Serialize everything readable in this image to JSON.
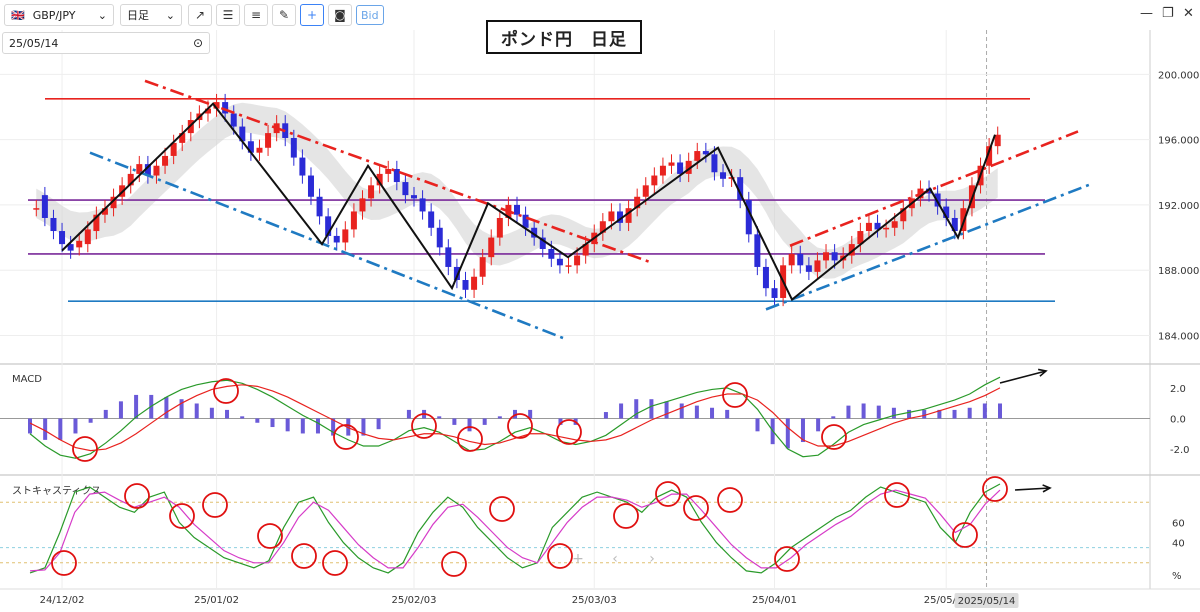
{
  "toolbar": {
    "symbol": "GBP/JPY",
    "timeframe": "日足",
    "bid_label": "Bid"
  },
  "date_selector": {
    "value": "25/05/14"
  },
  "title": "ポンド円　日足",
  "colors": {
    "bull": "#e8231f",
    "bear": "#2b2bd6",
    "resistance": "#e8231f",
    "support": "#1f7ac2",
    "trend_down": "#e8231f",
    "trend_blue": "#1f7ac2",
    "purple_level": "#7a2a9a",
    "macd_line": "#2a9a2a",
    "signal_line": "#e8231f",
    "histogram": "#6a5ad8",
    "stoch_k": "#2a9a2a",
    "stoch_d": "#d63cc8",
    "circle": "#e01010"
  },
  "chart_data": [
    {
      "type": "candlestick",
      "symbol": "GBP/JPY",
      "timeframe": "daily",
      "y_ticks": [
        "200.000",
        "196.000",
        "192.000",
        "188.000",
        "184.000"
      ],
      "ylim": [
        182.5,
        201
      ],
      "x_ticks": [
        "24/12/02",
        "25/01/02",
        "25/02/03",
        "25/03/03",
        "25/04/01",
        "25/05/01"
      ],
      "current_date_label": "2025/05/14",
      "levels": [
        {
          "name": "resistance",
          "value": 198.5
        },
        {
          "name": "support",
          "value": 186.1
        },
        {
          "name": "upper-range",
          "value": 192.3
        },
        {
          "name": "lower-range",
          "value": 189.0
        }
      ],
      "closes": [
        191.8,
        191.2,
        190.4,
        189.6,
        189.2,
        189.8,
        190.5,
        191.4,
        191.8,
        192.5,
        193.2,
        193.9,
        194.5,
        193.8,
        194.4,
        195.0,
        195.8,
        196.4,
        197.2,
        197.6,
        197.9,
        198.3,
        197.6,
        196.8,
        195.9,
        195.2,
        195.5,
        196.4,
        197.0,
        196.1,
        194.9,
        193.8,
        192.5,
        191.3,
        190.1,
        189.7,
        190.5,
        191.6,
        192.4,
        193.2,
        193.9,
        194.2,
        193.4,
        192.6,
        192.4,
        191.6,
        190.6,
        189.4,
        188.2,
        187.4,
        186.8,
        187.6,
        188.8,
        190.0,
        191.2,
        192.0,
        191.4,
        190.6,
        190.0,
        189.3,
        188.7,
        188.3,
        188.3,
        188.9,
        189.6,
        190.3,
        191.0,
        191.6,
        190.9,
        191.8,
        192.5,
        193.2,
        193.8,
        194.4,
        194.6,
        193.9,
        194.7,
        195.3,
        195.1,
        194.0,
        193.6,
        193.7,
        192.3,
        190.2,
        188.2,
        186.9,
        186.3,
        188.3,
        189.0,
        188.3,
        187.9,
        188.6,
        189.1,
        188.6,
        188.9,
        189.6,
        190.4,
        190.9,
        190.5,
        190.6,
        191.0,
        191.8,
        192.4,
        193.0,
        192.7,
        191.9,
        191.2,
        190.4,
        191.8,
        193.2,
        194.4,
        195.6,
        196.3
      ],
      "opens": [
        191.8,
        192.6,
        191.2,
        190.4,
        189.6,
        189.4,
        189.6,
        190.4,
        191.4,
        191.8,
        192.5,
        193.2,
        193.9,
        194.5,
        193.8,
        194.4,
        195.0,
        195.8,
        196.4,
        197.2,
        197.6,
        197.9,
        198.3,
        197.6,
        196.8,
        195.9,
        195.2,
        195.5,
        196.4,
        197.0,
        196.1,
        194.9,
        193.8,
        192.5,
        191.3,
        190.1,
        189.7,
        190.5,
        191.6,
        192.4,
        193.2,
        193.9,
        194.2,
        193.4,
        192.6,
        192.4,
        191.6,
        190.6,
        189.4,
        188.2,
        187.4,
        186.8,
        187.6,
        188.8,
        190.0,
        191.2,
        192.0,
        191.4,
        190.6,
        190.0,
        189.3,
        188.7,
        188.3,
        188.3,
        188.9,
        189.6,
        190.3,
        191.0,
        191.6,
        190.9,
        191.8,
        192.5,
        193.2,
        193.8,
        194.4,
        194.6,
        193.9,
        194.7,
        195.3,
        195.1,
        194.0,
        193.6,
        193.7,
        192.3,
        190.2,
        188.2,
        186.9,
        186.3,
        188.3,
        189.0,
        188.3,
        187.9,
        188.6,
        189.1,
        188.6,
        188.9,
        189.6,
        190.4,
        190.9,
        190.5,
        190.6,
        191.0,
        191.8,
        192.4,
        193.0,
        192.7,
        191.9,
        191.2,
        190.4,
        191.8,
        193.2,
        194.4,
        195.6
      ]
    },
    {
      "type": "line",
      "name": "MACD",
      "y_ticks": [
        "2.0",
        "0.0",
        "-2.0"
      ],
      "ylim": [
        -3.5,
        3.3
      ],
      "series": [
        {
          "name": "MACD",
          "values": [
            -1.0,
            -1.8,
            -2.4,
            -2.6,
            -2.3,
            -1.6,
            -0.8,
            0.1,
            0.8,
            1.4,
            1.9,
            2.2,
            2.4,
            2.5,
            2.3,
            1.9,
            1.4,
            0.8,
            0.2,
            -0.3,
            -0.9,
            -1.4,
            -1.8,
            -1.8,
            -1.4,
            -0.8,
            -0.6,
            -0.9,
            -1.5,
            -2.1,
            -2.0,
            -1.5,
            -0.9,
            -0.6,
            -1.0,
            -1.5,
            -1.7,
            -1.5,
            -1.1,
            -0.4,
            0.3,
            0.8,
            1.1,
            1.4,
            1.7,
            1.9,
            2.0,
            1.6,
            0.6,
            -0.8,
            -2.0,
            -2.5,
            -2.4,
            -1.7,
            -0.9,
            -0.4,
            -0.1,
            0.2,
            0.4,
            0.6,
            0.9,
            1.2,
            1.6,
            2.2,
            2.7
          ]
        },
        {
          "name": "Signal",
          "values": [
            -0.3,
            -0.8,
            -1.4,
            -1.9,
            -2.1,
            -2.0,
            -1.6,
            -1.0,
            -0.3,
            0.4,
            1.0,
            1.5,
            1.9,
            2.1,
            2.2,
            2.1,
            1.8,
            1.4,
            0.9,
            0.4,
            -0.1,
            -0.6,
            -1.0,
            -1.3,
            -1.4,
            -1.2,
            -1.0,
            -1.0,
            -1.2,
            -1.5,
            -1.7,
            -1.6,
            -1.3,
            -1.0,
            -1.0,
            -1.2,
            -1.4,
            -1.5,
            -1.4,
            -1.1,
            -0.6,
            -0.1,
            0.3,
            0.7,
            1.1,
            1.4,
            1.6,
            1.6,
            1.2,
            0.4,
            -0.6,
            -1.4,
            -1.8,
            -1.8,
            -1.5,
            -1.1,
            -0.7,
            -0.3,
            0.0,
            0.2,
            0.5,
            0.8,
            1.1,
            1.5,
            2.0
          ]
        }
      ]
    },
    {
      "type": "line",
      "name": "ストキャスティクス",
      "y_ticks": [
        "60",
        "40",
        "%"
      ],
      "ylim": [
        0,
        100
      ],
      "series": [
        {
          "name": "%K",
          "values": [
            10,
            15,
            50,
            90,
            95,
            85,
            75,
            70,
            85,
            90,
            60,
            45,
            35,
            25,
            20,
            15,
            22,
            55,
            80,
            85,
            60,
            40,
            25,
            15,
            10,
            20,
            50,
            70,
            85,
            75,
            55,
            40,
            25,
            15,
            20,
            55,
            70,
            85,
            90,
            85,
            80,
            70,
            85,
            92,
            85,
            60,
            40,
            25,
            12,
            10,
            20,
            35,
            45,
            55,
            65,
            72,
            85,
            95,
            90,
            85,
            80,
            55,
            40,
            70,
            90,
            98
          ]
        },
        {
          "name": "%D",
          "values": [
            12,
            13,
            30,
            70,
            88,
            90,
            82,
            75,
            80,
            85,
            75,
            58,
            45,
            32,
            25,
            20,
            20,
            40,
            65,
            80,
            72,
            55,
            38,
            25,
            15,
            15,
            35,
            58,
            75,
            78,
            65,
            50,
            35,
            25,
            20,
            40,
            60,
            75,
            85,
            85,
            82,
            75,
            80,
            88,
            88,
            72,
            55,
            38,
            25,
            15,
            15,
            25,
            38,
            48,
            58,
            66,
            78,
            88,
            92,
            88,
            84,
            68,
            50,
            58,
            78,
            92
          ]
        }
      ]
    }
  ]
}
